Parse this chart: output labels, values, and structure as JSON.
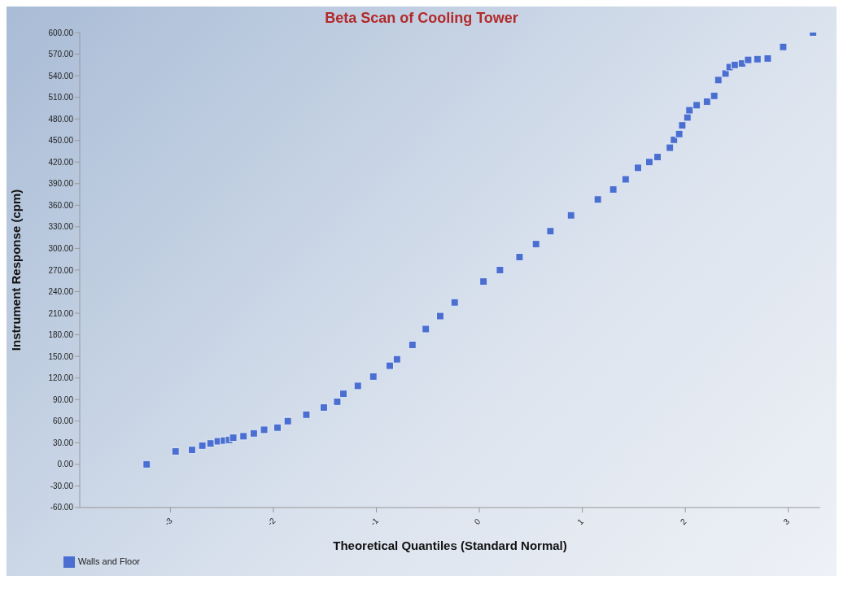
{
  "chart_data": {
    "type": "scatter",
    "title": "Beta Scan of Cooling Tower",
    "xlabel": "Theoretical Quantiles (Standard Normal)",
    "ylabel": "Instrument Response (cpm)",
    "marker": "square",
    "legend": "bottom left",
    "grid": false,
    "xlim": [
      -3.88,
      3.31
    ],
    "xticks": [
      -3,
      -2,
      -1,
      0,
      1,
      2,
      3
    ],
    "ylim": [
      -60,
      600
    ],
    "yticks": [
      {
        "value": -60,
        "label": "-60.00"
      },
      {
        "value": -30,
        "label": "-30.00"
      },
      {
        "value": 0,
        "label": "0.00"
      },
      {
        "value": 30,
        "label": "30.00"
      },
      {
        "value": 60,
        "label": "60.00"
      },
      {
        "value": 90,
        "label": "90.00"
      },
      {
        "value": 120,
        "label": "120.00"
      },
      {
        "value": 150,
        "label": "150.00"
      },
      {
        "value": 180,
        "label": "180.00"
      },
      {
        "value": 210,
        "label": "210.00"
      },
      {
        "value": 240,
        "label": "240.00"
      },
      {
        "value": 270,
        "label": "270.00"
      },
      {
        "value": 300,
        "label": "300.00"
      },
      {
        "value": 330,
        "label": "330.00"
      },
      {
        "value": 360,
        "label": "360.00"
      },
      {
        "value": 390,
        "label": "390.00"
      },
      {
        "value": 420,
        "label": "420.00"
      },
      {
        "value": 450,
        "label": "450.00"
      },
      {
        "value": 480,
        "label": "480.00"
      },
      {
        "value": 510,
        "label": "510.00"
      },
      {
        "value": 540,
        "label": "540.00"
      },
      {
        "value": 570,
        "label": "570.00"
      },
      {
        "value": 600,
        "label": "600.00"
      }
    ],
    "series": [
      {
        "name": "Walls and Floor",
        "color": "#4a6fd0",
        "x": [
          -3.23,
          -2.95,
          -2.79,
          -2.69,
          -2.61,
          -2.54,
          -2.48,
          -2.43,
          -2.39,
          -2.29,
          -2.19,
          -2.09,
          -1.96,
          -1.86,
          -1.68,
          -1.51,
          -1.38,
          -1.32,
          -1.18,
          -1.03,
          -0.87,
          -0.8,
          -0.65,
          -0.52,
          -0.38,
          -0.24,
          0.04,
          0.2,
          0.39,
          0.55,
          0.69,
          0.89,
          1.15,
          1.3,
          1.42,
          1.54,
          1.65,
          1.73,
          1.85,
          1.89,
          1.94,
          1.97,
          2.02,
          2.04,
          2.11,
          2.21,
          2.28,
          2.32,
          2.39,
          2.43,
          2.48,
          2.55,
          2.61,
          2.7,
          2.8,
          2.95,
          3.24
        ],
        "values": [
          0,
          18,
          20,
          26,
          29,
          32,
          33,
          34,
          37,
          39,
          43,
          48,
          51,
          60,
          69,
          79,
          87,
          98,
          109,
          122,
          137,
          146,
          166,
          188,
          206,
          225,
          254,
          270,
          288,
          306,
          324,
          346,
          368,
          382,
          396,
          412,
          420,
          427,
          440,
          451,
          459,
          471,
          482,
          492,
          499,
          504,
          512,
          534,
          543,
          552,
          555,
          557,
          562,
          563,
          564,
          580,
          600
        ]
      }
    ]
  }
}
